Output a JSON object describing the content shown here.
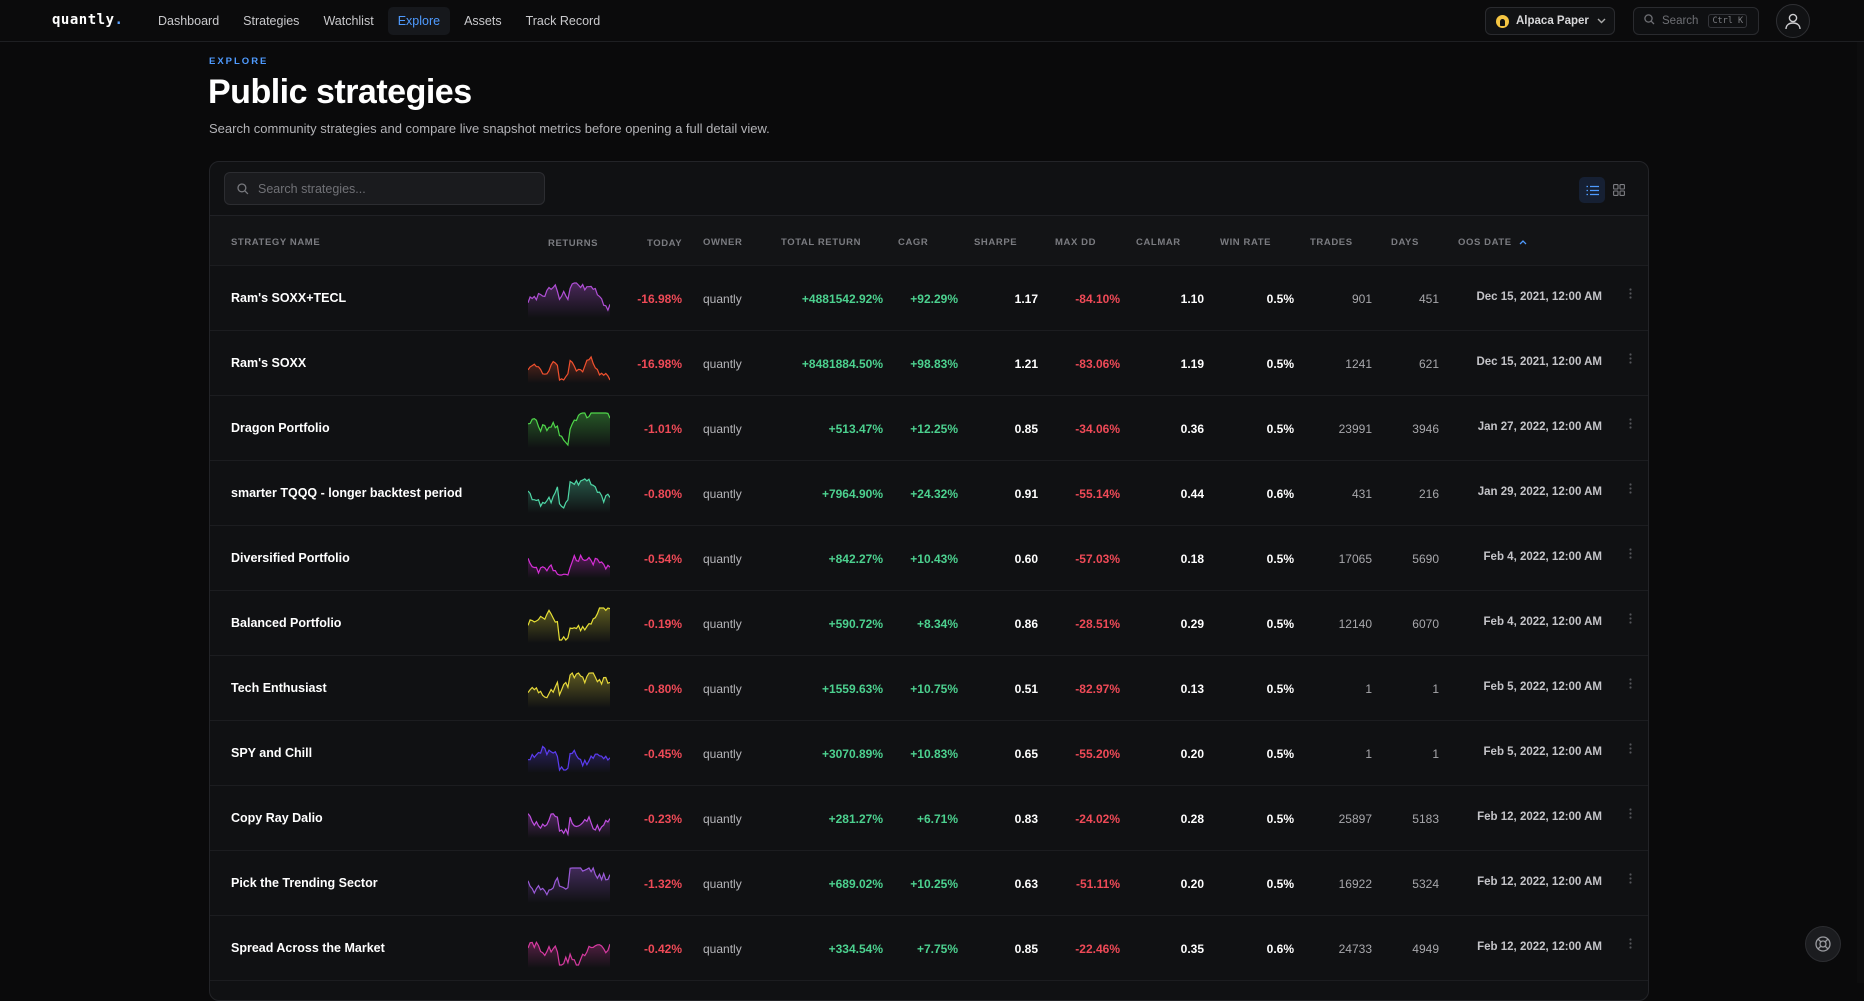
{
  "app": {
    "logo_text": "quantly",
    "logo_dot": "."
  },
  "nav": {
    "links": [
      "Dashboard",
      "Strategies",
      "Watchlist",
      "Explore",
      "Assets",
      "Track Record"
    ],
    "active": "Explore"
  },
  "broker": {
    "label": "Alpaca Paper",
    "icon": "alpaca-icon"
  },
  "global_search": {
    "placeholder": "Search",
    "shortcut": "Ctrl K"
  },
  "header": {
    "eyebrow": "EXPLORE",
    "title": "Public strategies",
    "subtitle": "Search community strategies and compare live snapshot metrics before opening a full detail view."
  },
  "table_search": {
    "placeholder": "Search strategies..."
  },
  "columns": {
    "name": "STRATEGY NAME",
    "returns": "RETURNS",
    "today": "TODAY",
    "owner": "OWNER",
    "total_return": "TOTAL RETURN",
    "cagr": "CAGR",
    "sharpe": "SHARPE",
    "max_dd": "MAX DD",
    "calmar": "CALMAR",
    "win_rate": "WIN RATE",
    "trades": "TRADES",
    "days": "DAYS",
    "oos_date": "OOS DATE"
  },
  "sort": {
    "column": "oos_date",
    "direction": "ascending"
  },
  "colors": {
    "accent": "#4f9bff",
    "positive": "#4cd18f",
    "negative": "#ef4a57"
  },
  "rows": [
    {
      "name": "Ram's SOXX+TECL",
      "today": "-16.98%",
      "owner": "quantly",
      "total_return": "+4881542.92%",
      "cagr": "+92.29%",
      "sharpe": "1.17",
      "max_dd": "-84.10%",
      "calmar": "1.10",
      "win_rate": "0.5%",
      "trades": "901",
      "days": "451",
      "oos_date": "Dec 15, 2021, 12:00 AM",
      "spark_color": "#b04fd6"
    },
    {
      "name": "Ram's SOXX",
      "today": "-16.98%",
      "owner": "quantly",
      "total_return": "+8481884.50%",
      "cagr": "+98.83%",
      "sharpe": "1.21",
      "max_dd": "-83.06%",
      "calmar": "1.19",
      "win_rate": "0.5%",
      "trades": "1241",
      "days": "621",
      "oos_date": "Dec 15, 2021, 12:00 AM",
      "spark_color": "#f0502e"
    },
    {
      "name": "Dragon Portfolio",
      "today": "-1.01%",
      "owner": "quantly",
      "total_return": "+513.47%",
      "cagr": "+12.25%",
      "sharpe": "0.85",
      "max_dd": "-34.06%",
      "calmar": "0.36",
      "win_rate": "0.5%",
      "trades": "23991",
      "days": "3946",
      "oos_date": "Jan 27, 2022, 12:00 AM",
      "spark_color": "#4fd64a"
    },
    {
      "name": "smarter TQQQ - longer backtest period",
      "today": "-0.80%",
      "owner": "quantly",
      "total_return": "+7964.90%",
      "cagr": "+24.32%",
      "sharpe": "0.91",
      "max_dd": "-55.14%",
      "calmar": "0.44",
      "win_rate": "0.6%",
      "trades": "431",
      "days": "216",
      "oos_date": "Jan 29, 2022, 12:00 AM",
      "spark_color": "#4fd6a6"
    },
    {
      "name": "Diversified Portfolio",
      "today": "-0.54%",
      "owner": "quantly",
      "total_return": "+842.27%",
      "cagr": "+10.43%",
      "sharpe": "0.60",
      "max_dd": "-57.03%",
      "calmar": "0.18",
      "win_rate": "0.5%",
      "trades": "17065",
      "days": "5690",
      "oos_date": "Feb 4, 2022, 12:00 AM",
      "spark_color": "#d62fd6"
    },
    {
      "name": "Balanced Portfolio",
      "today": "-0.19%",
      "owner": "quantly",
      "total_return": "+590.72%",
      "cagr": "+8.34%",
      "sharpe": "0.86",
      "max_dd": "-28.51%",
      "calmar": "0.29",
      "win_rate": "0.5%",
      "trades": "12140",
      "days": "6070",
      "oos_date": "Feb 4, 2022, 12:00 AM",
      "spark_color": "#e6df35"
    },
    {
      "name": "Tech Enthusiast",
      "today": "-0.80%",
      "owner": "quantly",
      "total_return": "+1559.63%",
      "cagr": "+10.75%",
      "sharpe": "0.51",
      "max_dd": "-82.97%",
      "calmar": "0.13",
      "win_rate": "0.5%",
      "trades": "1",
      "days": "1",
      "oos_date": "Feb 5, 2022, 12:00 AM",
      "spark_color": "#e6d83a"
    },
    {
      "name": "SPY and Chill",
      "today": "-0.45%",
      "owner": "quantly",
      "total_return": "+3070.89%",
      "cagr": "+10.83%",
      "sharpe": "0.65",
      "max_dd": "-55.20%",
      "calmar": "0.20",
      "win_rate": "0.5%",
      "trades": "1",
      "days": "1",
      "oos_date": "Feb 5, 2022, 12:00 AM",
      "spark_color": "#5b3cf0"
    },
    {
      "name": "Copy Ray Dalio",
      "today": "-0.23%",
      "owner": "quantly",
      "total_return": "+281.27%",
      "cagr": "+6.71%",
      "sharpe": "0.83",
      "max_dd": "-24.02%",
      "calmar": "0.28",
      "win_rate": "0.5%",
      "trades": "25897",
      "days": "5183",
      "oos_date": "Feb 12, 2022, 12:00 AM",
      "spark_color": "#c04fe0"
    },
    {
      "name": "Pick the Trending Sector",
      "today": "-1.32%",
      "owner": "quantly",
      "total_return": "+689.02%",
      "cagr": "+10.25%",
      "sharpe": "0.63",
      "max_dd": "-51.11%",
      "calmar": "0.20",
      "win_rate": "0.5%",
      "trades": "16922",
      "days": "5324",
      "oos_date": "Feb 12, 2022, 12:00 AM",
      "spark_color": "#9b5ad9"
    },
    {
      "name": "Spread Across the Market",
      "today": "-0.42%",
      "owner": "quantly",
      "total_return": "+334.54%",
      "cagr": "+7.75%",
      "sharpe": "0.85",
      "max_dd": "-22.46%",
      "calmar": "0.35",
      "win_rate": "0.6%",
      "trades": "24733",
      "days": "4949",
      "oos_date": "Feb 12, 2022, 12:00 AM",
      "spark_color": "#d63aa0"
    }
  ]
}
